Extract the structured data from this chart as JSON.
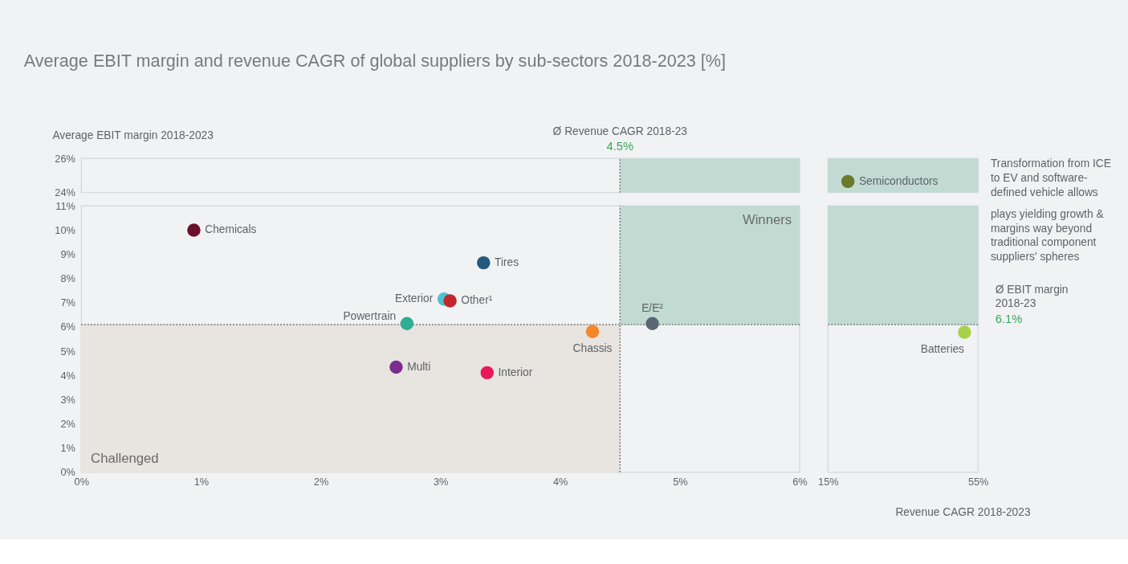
{
  "chart_data": [
    {
      "type": "scatter",
      "title": "Average EBIT margin and revenue CAGR of global suppliers by sub-sectors 2018-2023 [%]",
      "ylabel": "Average EBIT margin 2018-2023",
      "xlim": [
        0,
        6
      ],
      "ylim": [
        24,
        26
      ],
      "yticks": [
        {
          "value": 24,
          "label": "24%"
        },
        {
          "value": 26,
          "label": "26%"
        }
      ],
      "tick_labels": "y",
      "grid": false,
      "bands": [
        {
          "axis": "x",
          "from": 4.5,
          "to": 6,
          "color": "#c2dbd2"
        }
      ],
      "ref_lines": [
        {
          "axis": "x",
          "value": 4.5,
          "label": "4.5%",
          "line_style": "dotted"
        }
      ],
      "annotations": [
        "Ø Revenue CAGR 2018-23"
      ]
    },
    {
      "type": "scatter",
      "x": [
        20.3
      ],
      "values": [
        24.65
      ],
      "colors": [
        "#6b7a2a"
      ],
      "xlim": [
        15,
        55
      ],
      "ylim": [
        24,
        26
      ],
      "tick_labels": false,
      "grid": false,
      "bands": [
        {
          "axis": "y",
          "from": 24,
          "to": 26,
          "color": "#c2dbd2"
        }
      ],
      "annotations": [
        {
          "text": "Semiconductors",
          "x": 20.3,
          "y": 24.65
        },
        "Transformation from ICE to EV and software-defined vehicle allows"
      ]
    },
    {
      "type": "scatter",
      "x": [
        0.94,
        3.36,
        3.03,
        3.08,
        2.72,
        2.63,
        3.39,
        4.27,
        4.77
      ],
      "values": [
        10.0,
        8.65,
        7.15,
        7.08,
        6.14,
        4.34,
        4.11,
        5.81,
        6.14
      ],
      "colors": [
        "#6b0f2a",
        "#245a7c",
        "#4cc3cf",
        "#c0282d",
        "#2fae93",
        "#7a2e8e",
        "#e8195a",
        "#f5862a",
        "#5a6670"
      ],
      "xlim": [
        0,
        6
      ],
      "xticks": [
        {
          "value": 0,
          "label": "0%"
        },
        {
          "value": 1,
          "label": "1%"
        },
        {
          "value": 2,
          "label": "2%"
        },
        {
          "value": 3,
          "label": "3%"
        },
        {
          "value": 4,
          "label": "4%"
        },
        {
          "value": 5,
          "label": "5%"
        },
        {
          "value": 6,
          "label": "6%"
        }
      ],
      "ylim": [
        0,
        11
      ],
      "yticks": [
        {
          "value": 0,
          "label": "0%"
        },
        {
          "value": 1,
          "label": "1%"
        },
        {
          "value": 2,
          "label": "2%"
        },
        {
          "value": 3,
          "label": "3%"
        },
        {
          "value": 4,
          "label": "4%"
        },
        {
          "value": 5,
          "label": "5%"
        },
        {
          "value": 6,
          "label": "6%"
        },
        {
          "value": 7,
          "label": "7%"
        },
        {
          "value": 8,
          "label": "8%"
        },
        {
          "value": 9,
          "label": "9%"
        },
        {
          "value": 10,
          "label": "10%"
        },
        {
          "value": 11,
          "label": "11%"
        }
      ],
      "grid": false,
      "bands": [
        {
          "axis": "x",
          "from": 4.5,
          "to": 6,
          "label": "Winners",
          "color": "#c2dbd2"
        },
        {
          "axis": "x",
          "from": 0,
          "to": 4.5,
          "label": "Challenged",
          "color": "#e8e4df"
        }
      ],
      "ref_lines": [
        {
          "axis": "x",
          "value": 4.5,
          "line_style": "dotted"
        },
        {
          "axis": "y",
          "value": 6.1,
          "line_style": "dotted"
        }
      ],
      "annotations": [
        {
          "text": "Chemicals",
          "x": 0.94,
          "y": 10.0
        },
        {
          "text": "Tires",
          "x": 3.36,
          "y": 8.65
        },
        {
          "text": "Exterior",
          "x": 3.03,
          "y": 7.15
        },
        {
          "text": "Other¹",
          "x": 3.08,
          "y": 7.08
        },
        {
          "text": "Powertrain",
          "x": 2.72,
          "y": 6.14
        },
        {
          "text": "Multi",
          "x": 2.63,
          "y": 4.34
        },
        {
          "text": "Interior",
          "x": 3.39,
          "y": 4.11
        },
        {
          "text": "Chassis",
          "x": 4.27,
          "y": 5.81
        },
        {
          "text": "E/E²",
          "x": 4.77,
          "y": 6.14
        }
      ]
    },
    {
      "type": "scatter",
      "xlabel": "Revenue CAGR 2018-2023",
      "x": [
        51.4
      ],
      "values": [
        5.78
      ],
      "colors": [
        "#a8d14a"
      ],
      "xlim": [
        15,
        55
      ],
      "xticks": [
        {
          "value": 15,
          "label": "15%"
        },
        {
          "value": 55,
          "label": "55%"
        }
      ],
      "ylim": [
        0,
        11
      ],
      "tick_labels": "x",
      "grid": false,
      "bands": [
        {
          "axis": "y",
          "from": 6.1,
          "to": 11,
          "color": "#c2dbd2"
        }
      ],
      "ref_lines": [
        {
          "axis": "y",
          "value": 6.1,
          "label": "6.1%",
          "line_style": "dotted"
        }
      ],
      "annotations": [
        "Ø EBIT margin 2018-23",
        "plays yielding growth & margins way beyond traditional component suppliers' spheres",
        {
          "text": "Batteries",
          "x": 51.4,
          "y": 5.78
        }
      ]
    }
  ]
}
